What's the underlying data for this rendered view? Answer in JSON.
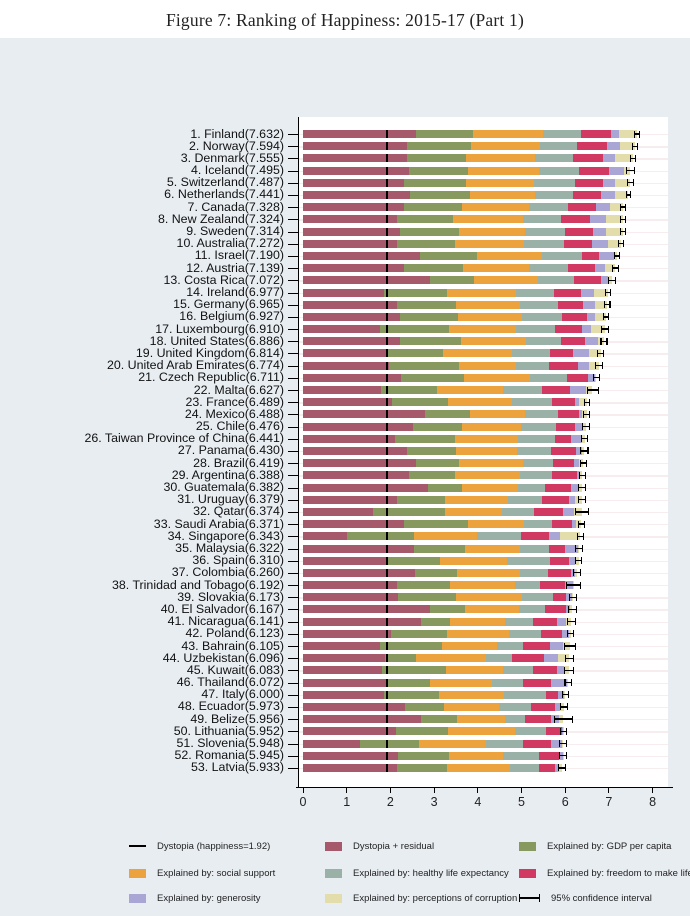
{
  "title": "Figure 7: Ranking of Happiness: 2015-17 (Part 1)",
  "chart_data": {
    "type": "bar",
    "orientation": "horizontal",
    "stacked": true,
    "title": "Figure 7: Ranking of Happiness: 2015-17 (Part 1)",
    "xlabel": "",
    "ylabel": "",
    "xlim": [
      0,
      8
    ],
    "xticks": [
      0,
      1,
      2,
      3,
      4,
      5,
      6,
      7,
      8
    ],
    "grid": "faint horizontal category lines",
    "dystopia_line": 1.92,
    "series_order": [
      "dystopia_residual",
      "gdp",
      "social_support",
      "healthy_life",
      "freedom",
      "generosity",
      "corruption"
    ],
    "series_labels": {
      "dystopia_residual": "Dystopia + residual",
      "gdp": "Explained by: GDP per capita",
      "social_support": "Explained by: social support",
      "healthy_life": "Explained by: healthy life expectancy",
      "freedom": "Explained by: freedom to make life choices",
      "generosity": "Explained by: generosity",
      "corruption": "Explained by: perceptions of corruption"
    },
    "colors": {
      "dystopia_residual": "#a5596b",
      "gdp": "#87995f",
      "social_support": "#eda33d",
      "healthy_life": "#99b1a7",
      "freedom": "#d13862",
      "generosity": "#a9a6d6",
      "corruption": "#e3dcab",
      "dystopia_marker": "#000000",
      "error_bar": "#000000",
      "grid_line": "#f8edee",
      "panel_bg": "#e8edf2",
      "plot_bg": "#ffffff",
      "axis": "#000000"
    },
    "countries": [
      {
        "rank": 1,
        "name": "Finland",
        "score": 7.632,
        "ci": 0.07,
        "values": [
          2.585,
          1.305,
          1.592,
          0.874,
          0.681,
          0.202,
          0.393
        ]
      },
      {
        "rank": 2,
        "name": "Norway",
        "score": 7.594,
        "ci": 0.06,
        "values": [
          2.383,
          1.456,
          1.582,
          0.861,
          0.686,
          0.286,
          0.34
        ]
      },
      {
        "rank": 3,
        "name": "Denmark",
        "score": 7.555,
        "ci": 0.07,
        "values": [
          2.371,
          1.351,
          1.59,
          0.868,
          0.683,
          0.284,
          0.408
        ]
      },
      {
        "rank": 4,
        "name": "Iceland",
        "score": 7.495,
        "ci": 0.1,
        "values": [
          2.426,
          1.343,
          1.644,
          0.914,
          0.677,
          0.353,
          0.138
        ]
      },
      {
        "rank": 5,
        "name": "Switzerland",
        "score": 7.487,
        "ci": 0.08,
        "values": [
          2.318,
          1.42,
          1.549,
          0.927,
          0.66,
          0.256,
          0.357
        ]
      },
      {
        "rank": 6,
        "name": "Netherlands",
        "score": 7.441,
        "ci": 0.06,
        "values": [
          2.448,
          1.361,
          1.488,
          0.878,
          0.638,
          0.333,
          0.295
        ]
      },
      {
        "rank": 7,
        "name": "Canada",
        "score": 7.328,
        "ci": 0.07,
        "values": [
          2.305,
          1.33,
          1.532,
          0.896,
          0.653,
          0.321,
          0.291
        ]
      },
      {
        "rank": 8,
        "name": "New Zealand",
        "score": 7.324,
        "ci": 0.07,
        "values": [
          2.156,
          1.268,
          1.601,
          0.876,
          0.669,
          0.365,
          0.389
        ]
      },
      {
        "rank": 9,
        "name": "Sweden",
        "score": 7.314,
        "ci": 0.07,
        "values": [
          2.218,
          1.355,
          1.501,
          0.913,
          0.659,
          0.285,
          0.383
        ]
      },
      {
        "rank": 10,
        "name": "Australia",
        "score": 7.272,
        "ci": 0.07,
        "values": [
          2.139,
          1.34,
          1.573,
          0.91,
          0.647,
          0.361,
          0.302
        ]
      },
      {
        "rank": 11,
        "name": "Israel",
        "score": 7.19,
        "ci": 0.07,
        "values": [
          2.684,
          1.301,
          1.477,
          0.916,
          0.4,
          0.33,
          0.082
        ]
      },
      {
        "rank": 12,
        "name": "Austria",
        "score": 7.139,
        "ci": 0.08,
        "values": [
          2.32,
          1.341,
          1.504,
          0.891,
          0.617,
          0.242,
          0.224
        ]
      },
      {
        "rank": 13,
        "name": "Costa Rica",
        "score": 7.072,
        "ci": 0.09,
        "values": [
          2.91,
          1.01,
          1.459,
          0.817,
          0.632,
          0.143,
          0.101
        ]
      },
      {
        "rank": 14,
        "name": "Ireland",
        "score": 6.977,
        "ci": 0.07,
        "values": [
          1.843,
          1.448,
          1.583,
          0.876,
          0.614,
          0.307,
          0.306
        ]
      },
      {
        "rank": 15,
        "name": "Germany",
        "score": 6.965,
        "ci": 0.07,
        "values": [
          2.151,
          1.34,
          1.474,
          0.861,
          0.586,
          0.273,
          0.28
        ]
      },
      {
        "rank": 16,
        "name": "Belgium",
        "score": 6.927,
        "ci": 0.07,
        "values": [
          2.215,
          1.324,
          1.483,
          0.894,
          0.583,
          0.188,
          0.24
        ]
      },
      {
        "rank": 17,
        "name": "Luxembourg",
        "score": 6.91,
        "ci": 0.1,
        "values": [
          1.769,
          1.576,
          1.52,
          0.896,
          0.632,
          0.196,
          0.321
        ]
      },
      {
        "rank": 18,
        "name": "United States",
        "score": 6.886,
        "ci": 0.08,
        "values": [
          2.227,
          1.398,
          1.471,
          0.819,
          0.547,
          0.291,
          0.133
        ]
      },
      {
        "rank": 19,
        "name": "United Kingdom",
        "score": 6.814,
        "ci": 0.08,
        "values": [
          1.912,
          1.301,
          1.559,
          0.883,
          0.533,
          0.354,
          0.272
        ]
      },
      {
        "rank": 20,
        "name": "United Arab Emirates",
        "score": 6.774,
        "ci": 0.09,
        "values": [
          1.96,
          1.601,
          1.302,
          0.772,
          0.652,
          0.262,
          0.225
        ]
      },
      {
        "rank": 21,
        "name": "Czech Republic",
        "score": 6.711,
        "ci": 0.08,
        "values": [
          2.251,
          1.433,
          1.502,
          0.852,
          0.49,
          0.147,
          0.036
        ]
      },
      {
        "rank": 22,
        "name": "Malta",
        "score": 6.627,
        "ci": 0.14,
        "values": [
          1.785,
          1.27,
          1.525,
          0.884,
          0.645,
          0.376,
          0.142
        ]
      },
      {
        "rank": 23,
        "name": "France",
        "score": 6.489,
        "ci": 0.07,
        "values": [
          2.028,
          1.293,
          1.466,
          0.908,
          0.52,
          0.098,
          0.176
        ]
      },
      {
        "rank": 24,
        "name": "Mexico",
        "score": 6.488,
        "ci": 0.08,
        "values": [
          2.794,
          1.038,
          1.252,
          0.761,
          0.479,
          0.069,
          0.095
        ]
      },
      {
        "rank": 25,
        "name": "Chile",
        "score": 6.476,
        "ci": 0.09,
        "values": [
          2.517,
          1.131,
          1.331,
          0.808,
          0.431,
          0.197,
          0.061
        ]
      },
      {
        "rank": 26,
        "name": "Taiwan Province of China",
        "score": 6.441,
        "ci": 0.08,
        "values": [
          2.111,
          1.365,
          1.436,
          0.857,
          0.351,
          0.258,
          0.063
        ]
      },
      {
        "rank": 27,
        "name": "Panama",
        "score": 6.43,
        "ci": 0.1,
        "values": [
          2.383,
          1.112,
          1.402,
          0.779,
          0.575,
          0.125,
          0.054
        ]
      },
      {
        "rank": 28,
        "name": "Brazil",
        "score": 6.419,
        "ci": 0.08,
        "values": [
          2.585,
          0.986,
          1.474,
          0.675,
          0.493,
          0.11,
          0.096
        ]
      },
      {
        "rank": 29,
        "name": "Argentina",
        "score": 6.388,
        "ci": 0.08,
        "values": [
          2.417,
          1.073,
          1.468,
          0.744,
          0.57,
          0.062,
          0.054
        ]
      },
      {
        "rank": 30,
        "name": "Guatemala",
        "score": 6.382,
        "ci": 0.1,
        "values": [
          2.87,
          0.781,
          1.269,
          0.608,
          0.604,
          0.179,
          0.071
        ]
      },
      {
        "rank": 31,
        "name": "Uruguay",
        "score": 6.379,
        "ci": 0.09,
        "values": [
          2.146,
          1.093,
          1.459,
          0.771,
          0.625,
          0.13,
          0.155
        ]
      },
      {
        "rank": 32,
        "name": "Qatar",
        "score": 6.374,
        "ci": 0.16,
        "values": [
          1.593,
          1.649,
          1.303,
          0.748,
          0.654,
          0.256,
          0.171
        ]
      },
      {
        "rank": 33,
        "name": "Saudi Arabia",
        "score": 6.371,
        "ci": 0.09,
        "values": [
          2.305,
          1.474,
          1.282,
          0.649,
          0.449,
          0.08,
          0.132
        ]
      },
      {
        "rank": 34,
        "name": "Singapore",
        "score": 6.343,
        "ci": 0.08,
        "values": [
          1.006,
          1.529,
          1.451,
          1.008,
          0.631,
          0.261,
          0.457
        ]
      },
      {
        "rank": 35,
        "name": "Malaysia",
        "score": 6.322,
        "ci": 0.09,
        "values": [
          2.544,
          1.161,
          1.258,
          0.669,
          0.356,
          0.31,
          0.024
        ]
      },
      {
        "rank": 36,
        "name": "Spain",
        "score": 6.31,
        "ci": 0.08,
        "values": [
          1.891,
          1.251,
          1.538,
          0.965,
          0.449,
          0.142,
          0.074
        ]
      },
      {
        "rank": 37,
        "name": "Colombia",
        "score": 6.26,
        "ci": 0.09,
        "values": [
          2.562,
          0.96,
          1.439,
          0.635,
          0.531,
          0.099,
          0.034
        ]
      },
      {
        "rank": 38,
        "name": "Trinidad and Tobago",
        "score": 6.192,
        "ci": 0.17,
        "values": [
          2.148,
          1.223,
          1.492,
          0.564,
          0.575,
          0.171,
          0.019
        ]
      },
      {
        "rank": 39,
        "name": "Slovakia",
        "score": 6.173,
        "ci": 0.09,
        "values": [
          2.176,
          1.325,
          1.505,
          0.712,
          0.295,
          0.136,
          0.024
        ]
      },
      {
        "rank": 40,
        "name": "El Salvador",
        "score": 6.167,
        "ci": 0.1,
        "values": [
          2.906,
          0.794,
          1.242,
          0.596,
          0.477,
          0.088,
          0.064
        ]
      },
      {
        "rank": 41,
        "name": "Nicaragua",
        "score": 6.141,
        "ci": 0.1,
        "values": [
          2.708,
          0.668,
          1.247,
          0.644,
          0.538,
          0.208,
          0.128
        ]
      },
      {
        "rank": 42,
        "name": "Poland",
        "score": 6.123,
        "ci": 0.08,
        "values": [
          2.011,
          1.291,
          1.402,
          0.752,
          0.479,
          0.149,
          0.039
        ]
      },
      {
        "rank": 43,
        "name": "Bahrain",
        "score": 6.105,
        "ci": 0.13,
        "values": [
          1.756,
          1.419,
          1.266,
          0.602,
          0.602,
          0.298,
          0.162
        ]
      },
      {
        "rank": 44,
        "name": "Uzbekistan",
        "score": 6.096,
        "ci": 0.1,
        "values": [
          1.877,
          0.719,
          1.584,
          0.605,
          0.724,
          0.328,
          0.259
        ]
      },
      {
        "rank": 45,
        "name": "Kuwait",
        "score": 6.083,
        "ci": 0.11,
        "values": [
          1.806,
          1.474,
          1.301,
          0.675,
          0.554,
          0.167,
          0.106
        ]
      },
      {
        "rank": 46,
        "name": "Thailand",
        "score": 6.072,
        "ci": 0.09,
        "values": [
          1.902,
          1.016,
          1.417,
          0.707,
          0.637,
          0.364,
          0.029
        ]
      },
      {
        "rank": 47,
        "name": "Italy",
        "score": 6.0,
        "ci": 0.08,
        "values": [
          1.843,
          1.264,
          1.501,
          0.946,
          0.281,
          0.137,
          0.028
        ]
      },
      {
        "rank": 48,
        "name": "Ecuador",
        "score": 5.973,
        "ci": 0.09,
        "values": [
          2.324,
          0.896,
          1.271,
          0.733,
          0.554,
          0.108,
          0.087
        ]
      },
      {
        "rank": 49,
        "name": "Belize",
        "score": 5.956,
        "ci": 0.21,
        "values": [
          2.709,
          0.807,
          1.101,
          0.474,
          0.593,
          0.183,
          0.089
        ]
      },
      {
        "rank": 50,
        "name": "Lithuania",
        "score": 5.952,
        "ci": 0.08,
        "values": [
          2.13,
          1.197,
          1.527,
          0.716,
          0.35,
          0.026,
          0.006
        ]
      },
      {
        "rank": 51,
        "name": "Slovenia",
        "score": 5.948,
        "ci": 0.1,
        "values": [
          1.312,
          1.341,
          1.538,
          0.837,
          0.657,
          0.244,
          0.019
        ]
      },
      {
        "rank": 52,
        "name": "Romania",
        "score": 5.945,
        "ci": 0.09,
        "values": [
          2.176,
          1.162,
          1.232,
          0.825,
          0.462,
          0.083,
          0.005
        ]
      },
      {
        "rank": 53,
        "name": "Latvia",
        "score": 5.933,
        "ci": 0.09,
        "values": [
          2.139,
          1.148,
          1.454,
          0.671,
          0.363,
          0.092,
          0.066
        ]
      }
    ]
  },
  "legend": {
    "items": [
      {
        "kind": "dash",
        "color": "#000000",
        "label": "Dystopia (happiness=1.92)"
      },
      {
        "kind": "box",
        "color": "#a5596b",
        "label": "Dystopia + residual"
      },
      {
        "kind": "box",
        "color": "#87995f",
        "label": "Explained by: GDP per capita"
      },
      {
        "kind": "box",
        "color": "#eda33d",
        "label": "Explained by: social support"
      },
      {
        "kind": "box",
        "color": "#99b1a7",
        "label": "Explained by: healthy life expectancy"
      },
      {
        "kind": "box",
        "color": "#d13862",
        "label": "Explained by: freedom to make life choices"
      },
      {
        "kind": "box",
        "color": "#a9a6d6",
        "label": "Explained by: generosity"
      },
      {
        "kind": "box",
        "color": "#e3dcab",
        "label": "Explained by: perceptions of corruption"
      },
      {
        "kind": "ci",
        "color": "#000000",
        "label": "95% confidence interval"
      }
    ]
  }
}
